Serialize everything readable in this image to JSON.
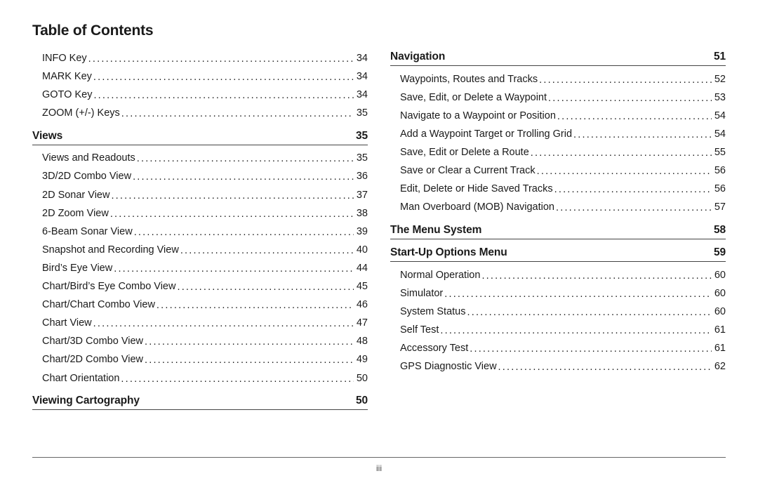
{
  "title": "Table of Contents",
  "pageNumber": "iii",
  "left": {
    "pre": [
      {
        "label": "INFO Key",
        "page": "34"
      },
      {
        "label": "MARK Key",
        "page": "34"
      },
      {
        "label": "GOTO Key",
        "page": "34"
      },
      {
        "label": "ZOOM (+/-) Keys",
        "page": "35"
      }
    ],
    "views": {
      "heading": "Views",
      "page": "35",
      "items": [
        {
          "label": "Views and Readouts",
          "page": "35"
        },
        {
          "label": "3D/2D Combo View",
          "page": "36"
        },
        {
          "label": "2D Sonar View",
          "page": "37"
        },
        {
          "label": "2D Zoom View",
          "page": "38"
        },
        {
          "label": "6-Beam Sonar View",
          "page": "39"
        },
        {
          "label": "Snapshot and Recording View",
          "page": "40"
        },
        {
          "label": "Bird’s Eye View",
          "page": "44"
        },
        {
          "label": "Chart/Bird’s Eye Combo View",
          "page": "45"
        },
        {
          "label": "Chart/Chart Combo View",
          "page": "46"
        },
        {
          "label": "Chart View",
          "page": "47"
        },
        {
          "label": "Chart/3D Combo View",
          "page": "48"
        },
        {
          "label": "Chart/2D Combo View",
          "page": "49"
        },
        {
          "label": "Chart Orientation",
          "page": "50"
        }
      ]
    },
    "viewingCartography": {
      "heading": "Viewing Cartography",
      "page": "50"
    }
  },
  "right": {
    "navigation": {
      "heading": "Navigation",
      "page": "51",
      "items": [
        {
          "label": "Waypoints, Routes and Tracks",
          "page": "52"
        },
        {
          "label": "Save, Edit, or Delete a Waypoint",
          "page": "53"
        },
        {
          "label": "Navigate to a Waypoint or Position",
          "page": "54"
        },
        {
          "label": "Add a Waypoint Target or Trolling Grid",
          "page": "54"
        },
        {
          "label": "Save, Edit or Delete a Route",
          "page": "55"
        },
        {
          "label": "Save or Clear a Current Track",
          "page": "56"
        },
        {
          "label": "Edit, Delete or Hide Saved Tracks",
          "page": "56"
        },
        {
          "label": "Man Overboard (MOB) Navigation",
          "page": "57"
        }
      ]
    },
    "menuSystem": {
      "heading": "The Menu System",
      "page": "58"
    },
    "startUp": {
      "heading": "Start-Up Options Menu",
      "page": "59",
      "items": [
        {
          "label": "Normal Operation",
          "page": "60"
        },
        {
          "label": "Simulator",
          "page": "60"
        },
        {
          "label": "System Status",
          "page": "60"
        },
        {
          "label": "Self Test",
          "page": "61"
        },
        {
          "label": "Accessory Test",
          "page": "61"
        },
        {
          "label": "GPS Diagnostic View",
          "page": "62"
        }
      ]
    }
  }
}
